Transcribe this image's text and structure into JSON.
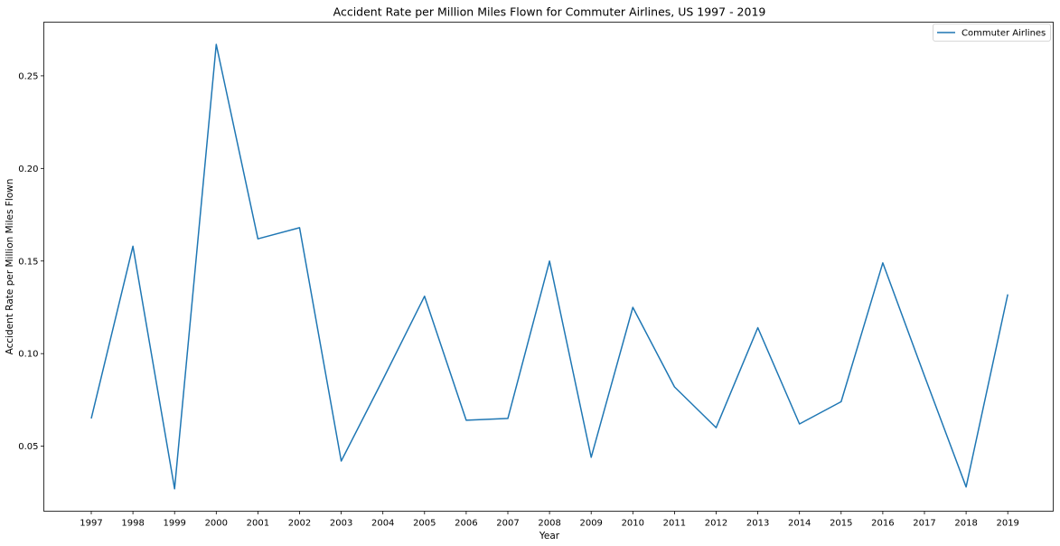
{
  "chart_data": {
    "type": "line",
    "title": "Accident Rate per Million Miles Flown for Commuter Airlines, US 1997 - 2019",
    "xlabel": "Year",
    "ylabel": "Accident Rate per Million Miles Flown",
    "categories": [
      "1997",
      "1998",
      "1999",
      "2000",
      "2001",
      "2002",
      "2003",
      "2004",
      "2005",
      "2006",
      "2007",
      "2008",
      "2009",
      "2010",
      "2011",
      "2012",
      "2013",
      "2014",
      "2015",
      "2016",
      "2017",
      "2018",
      "2019"
    ],
    "series": [
      {
        "name": "Commuter Airlines",
        "color": "#1f77b4",
        "values": [
          0.065,
          0.158,
          0.027,
          0.267,
          0.162,
          0.168,
          0.042,
          0.086,
          0.131,
          0.064,
          0.065,
          0.15,
          0.044,
          0.125,
          0.082,
          0.06,
          0.114,
          0.062,
          0.074,
          0.149,
          0.088,
          0.028,
          0.132
        ]
      }
    ],
    "y_ticks": [
      "0.05",
      "0.10",
      "0.15",
      "0.20",
      "0.25"
    ],
    "y_tick_values": [
      0.05,
      0.1,
      0.15,
      0.2,
      0.25
    ],
    "ylim": [
      0.0149,
      0.279
    ],
    "legend_position": "upper right",
    "grid": false
  }
}
